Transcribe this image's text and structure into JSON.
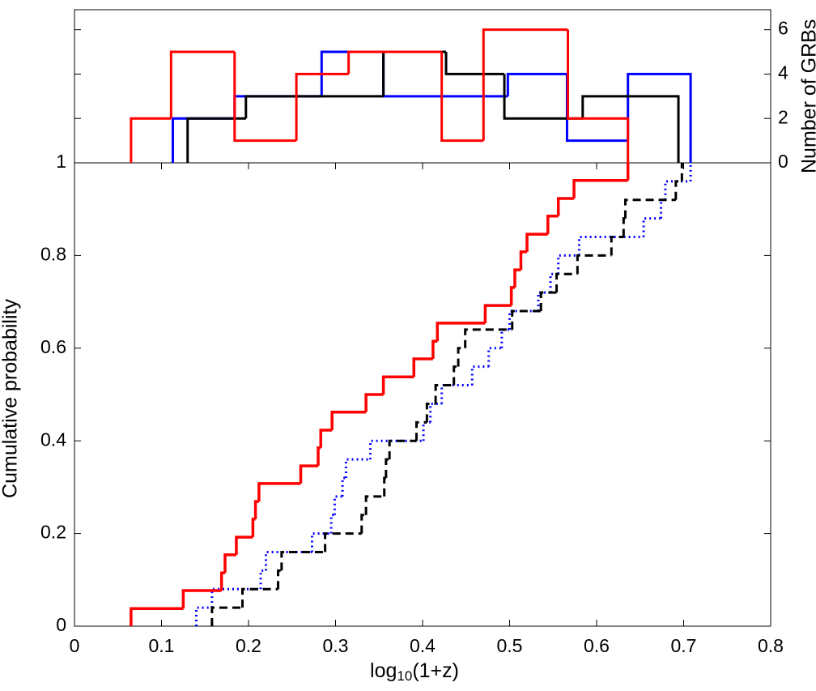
{
  "chart_data": [
    {
      "type": "histogram",
      "y2label": "Number of GRBs",
      "xlim": [
        0,
        0.8
      ],
      "y2lim": [
        0,
        6.9
      ],
      "y2ticks": [
        0,
        2,
        4,
        6
      ],
      "series": [
        {
          "color": "#0000ff",
          "bins": [
            0.113,
            0.184,
            0.284,
            0.355,
            0.498,
            0.566,
            0.636,
            0.708
          ],
          "counts": [
            2,
            3,
            5,
            3,
            4,
            1,
            4
          ],
          "axis": "y2"
        },
        {
          "color": "#000000",
          "bins": [
            0.13,
            0.197,
            0.355,
            0.427,
            0.494,
            0.584,
            0.694
          ],
          "counts": [
            2,
            3,
            5,
            4,
            2,
            3
          ],
          "axis": "y2"
        },
        {
          "color": "#ff0000",
          "bins": [
            0.065,
            0.111,
            0.184,
            0.255,
            0.315,
            0.422,
            0.47,
            0.567,
            0.636
          ],
          "counts": [
            2,
            5,
            1,
            4,
            5,
            1,
            6,
            2
          ],
          "axis": "y2"
        }
      ]
    },
    {
      "type": "step",
      "xlabel": [
        "log",
        "10",
        "(1+z)"
      ],
      "ylabel": "Cumulative probability",
      "xlim": [
        0,
        0.8
      ],
      "xticks": [
        0,
        0.1,
        0.2,
        0.3,
        0.4,
        0.5,
        0.6,
        0.7,
        0.8
      ],
      "ylim": [
        0,
        1
      ],
      "yticks": [
        0,
        0.2,
        0.4,
        0.6,
        0.8,
        1
      ],
      "series": [
        {
          "color": "#0000ff",
          "linestyle": "dotted",
          "x": [
            0.14,
            0.158,
            0.214,
            0.22,
            0.273,
            0.295,
            0.299,
            0.308,
            0.312,
            0.34,
            0.401,
            0.409,
            0.422,
            0.457,
            0.476,
            0.491,
            0.5,
            0.533,
            0.547,
            0.556,
            0.58,
            0.654,
            0.674,
            0.679,
            0.708
          ],
          "values": [
            0.04,
            0.08,
            0.12,
            0.16,
            0.2,
            0.24,
            0.28,
            0.32,
            0.36,
            0.4,
            0.44,
            0.48,
            0.52,
            0.56,
            0.6,
            0.64,
            0.68,
            0.72,
            0.76,
            0.8,
            0.84,
            0.88,
            0.92,
            0.96,
            1.0
          ]
        },
        {
          "color": "#000000",
          "linestyle": "dashed",
          "x": [
            0.158,
            0.193,
            0.234,
            0.238,
            0.288,
            0.33,
            0.335,
            0.356,
            0.358,
            0.362,
            0.393,
            0.405,
            0.415,
            0.436,
            0.441,
            0.449,
            0.503,
            0.536,
            0.554,
            0.578,
            0.617,
            0.631,
            0.633,
            0.691,
            0.698
          ],
          "values": [
            0.04,
            0.08,
            0.12,
            0.16,
            0.2,
            0.24,
            0.28,
            0.32,
            0.36,
            0.4,
            0.44,
            0.48,
            0.52,
            0.56,
            0.6,
            0.64,
            0.68,
            0.72,
            0.76,
            0.8,
            0.84,
            0.88,
            0.92,
            0.96,
            1.0
          ]
        },
        {
          "color": "#ff0000",
          "linestyle": "solid",
          "x": [
            0.065,
            0.125,
            0.169,
            0.173,
            0.186,
            0.205,
            0.208,
            0.212,
            0.26,
            0.28,
            0.283,
            0.296,
            0.335,
            0.355,
            0.39,
            0.412,
            0.417,
            0.472,
            0.502,
            0.506,
            0.513,
            0.52,
            0.544,
            0.556,
            0.574,
            0.636
          ],
          "values": [
            0.038,
            0.077,
            0.115,
            0.154,
            0.192,
            0.231,
            0.269,
            0.308,
            0.346,
            0.385,
            0.423,
            0.462,
            0.5,
            0.538,
            0.577,
            0.615,
            0.654,
            0.692,
            0.731,
            0.769,
            0.808,
            0.846,
            0.885,
            0.923,
            0.962,
            1.0
          ]
        }
      ]
    }
  ]
}
